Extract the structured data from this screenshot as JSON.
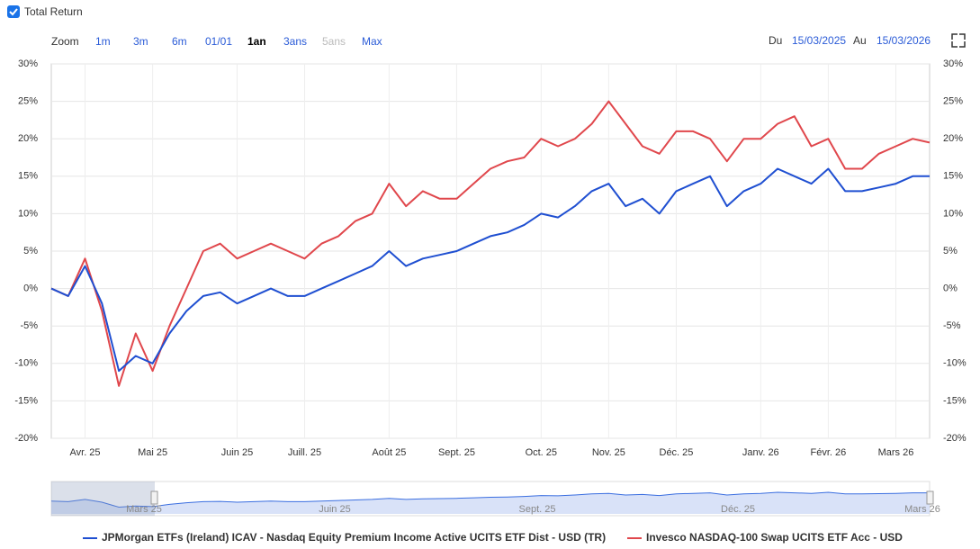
{
  "ui": {
    "checkbox_label": "Total Return",
    "zoom_label": "Zoom",
    "zoom_buttons": [
      "1m",
      "3m",
      "6m",
      "01/01",
      "1an",
      "3ans",
      "5ans",
      "Max"
    ],
    "from_label": "Du",
    "from_date": "15/03/2025",
    "to_label": "Au",
    "to_date": "15/03/2026",
    "navigator_labels": [
      "Mars 25",
      "Juin 25",
      "Sept. 25",
      "Déc. 25",
      "Mars 26"
    ]
  },
  "chart_data": {
    "type": "line",
    "categories": [
      null,
      null,
      "Avr. 25",
      null,
      null,
      null,
      "Mai 25",
      null,
      null,
      null,
      null,
      "Juin 25",
      null,
      null,
      null,
      "Juill. 25",
      null,
      null,
      null,
      null,
      "Août 25",
      null,
      null,
      null,
      "Sept. 25",
      null,
      null,
      null,
      null,
      "Oct. 25",
      null,
      null,
      null,
      "Nov. 25",
      null,
      null,
      null,
      "Déc. 25",
      null,
      null,
      null,
      null,
      "Janv. 26",
      null,
      null,
      null,
      "Févr. 26",
      null,
      null,
      null,
      "Mars 26",
      null,
      null
    ],
    "series": [
      {
        "name": "JPMorgan ETFs (Ireland) ICAV - Nasdaq Equity Premium Income Active UCITS ETF Dist - USD (TR)",
        "color": "#1f4fd1",
        "values": [
          0,
          -1,
          3,
          -2,
          -11,
          -9,
          -10,
          -6,
          -3,
          -1,
          -0.5,
          -2,
          -1,
          0,
          -1,
          -1,
          0,
          1,
          2,
          3,
          5,
          3,
          4,
          4.5,
          5,
          6,
          7,
          7.5,
          8.5,
          10,
          9.5,
          11,
          13,
          14,
          11,
          12,
          10,
          13,
          14,
          15,
          11,
          13,
          14,
          16,
          15,
          14,
          16,
          13,
          13,
          13.5,
          14,
          15,
          15
        ]
      },
      {
        "name": "Invesco NASDAQ-100 Swap UCITS ETF Acc - USD",
        "color": "#e0474c",
        "values": [
          0,
          -1,
          4,
          -3,
          -13,
          -6,
          -11,
          -5,
          0,
          5,
          6,
          4,
          5,
          6,
          5,
          4,
          6,
          7,
          9,
          10,
          14,
          11,
          13,
          12,
          12,
          14,
          16,
          17,
          17.5,
          20,
          19,
          20,
          22,
          25,
          22,
          19,
          18,
          21,
          21,
          20,
          17,
          20,
          20,
          22,
          23,
          19,
          20,
          16,
          16,
          18,
          19,
          20,
          19.5
        ]
      }
    ],
    "ylim": [
      -20,
      30
    ],
    "yticks": [
      {
        "value": -20,
        "label": "-20%"
      },
      {
        "value": -15,
        "label": "-15%"
      },
      {
        "value": -10,
        "label": "-10%"
      },
      {
        "value": -5,
        "label": "-5%"
      },
      {
        "value": 0,
        "label": "0%"
      },
      {
        "value": 5,
        "label": "5%"
      },
      {
        "value": 10,
        "label": "10%"
      },
      {
        "value": 15,
        "label": "15%"
      },
      {
        "value": 20,
        "label": "20%"
      },
      {
        "value": 25,
        "label": "25%"
      },
      {
        "value": 30,
        "label": "30%"
      }
    ],
    "grid": true
  }
}
